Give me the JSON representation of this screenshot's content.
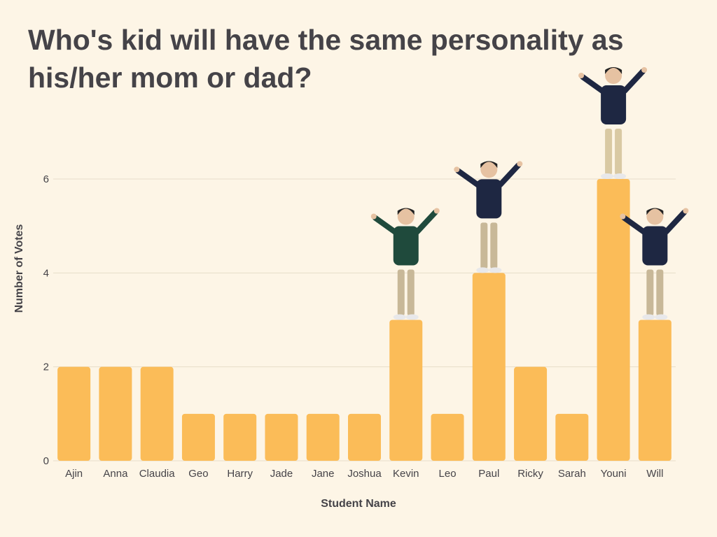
{
  "chart_data": {
    "type": "bar",
    "title": "Who's kid will have the same personality as his/her mom or dad?",
    "xlabel": "Student Name",
    "ylabel": "Number of Votes",
    "categories": [
      "Ajin",
      "Anna",
      "Claudia",
      "Geo",
      "Harry",
      "Jade",
      "Jane",
      "Joshua",
      "Kevin",
      "Leo",
      "Paul",
      "Ricky",
      "Sarah",
      "Youni",
      "Will"
    ],
    "values": [
      2,
      2,
      2,
      1,
      1,
      1,
      1,
      1,
      3,
      1,
      4,
      2,
      1,
      6,
      3
    ],
    "yticks": [
      0,
      2,
      4,
      6
    ],
    "ylim": [
      0,
      6
    ],
    "grid": true,
    "legend": "none",
    "bar_color": "#fbbc58",
    "text_color": "#454348",
    "background": "#fdf5e6",
    "figures_on_bars": [
      "Kevin",
      "Paul",
      "Youni",
      "Will"
    ]
  }
}
